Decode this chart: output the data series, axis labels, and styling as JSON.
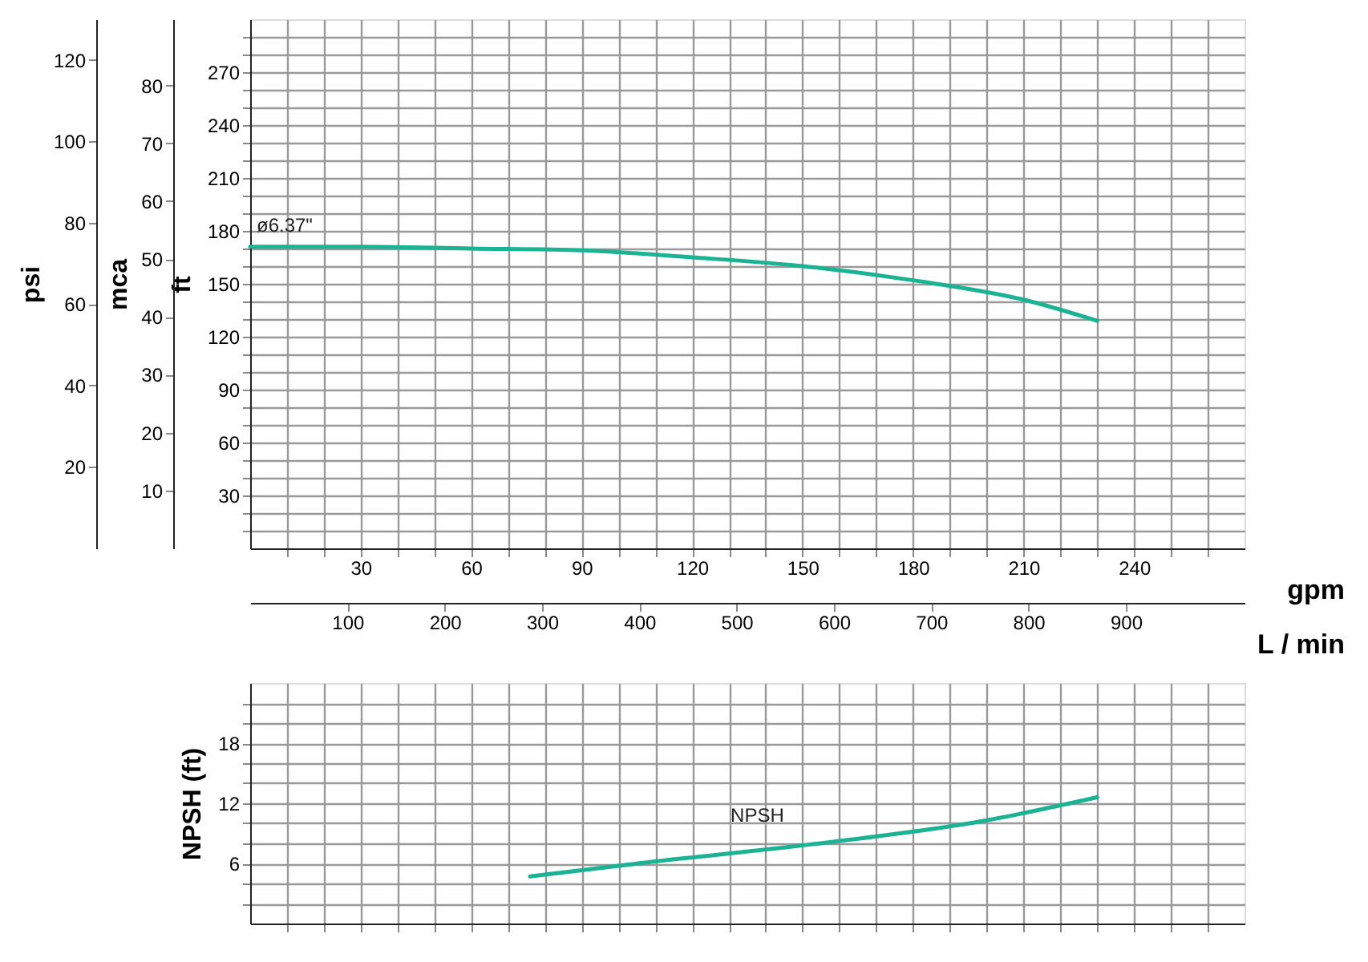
{
  "chart_data": [
    {
      "type": "line",
      "xlabel": "gpm",
      "x2label": "L / min",
      "ylabel": "ft",
      "y2label": "psi",
      "y3label": "mca",
      "grid": true,
      "x": [
        0,
        30,
        60,
        90,
        120,
        150,
        180,
        210,
        230
      ],
      "series": [
        {
          "color": "#1bb394",
          "values": [
            171,
            171,
            170,
            169,
            165,
            160,
            152,
            141,
            129
          ]
        }
      ],
      "annotations": [
        "ø6.37\""
      ],
      "xlim": [
        0,
        270
      ],
      "xticks": [
        {
          "value": 10,
          "label": null
        },
        {
          "value": 20,
          "label": null
        },
        30,
        {
          "value": 40,
          "label": null
        },
        {
          "value": 50,
          "label": null
        },
        60,
        {
          "value": 70,
          "label": null
        },
        {
          "value": 80,
          "label": null
        },
        90,
        {
          "value": 100,
          "label": null
        },
        {
          "value": 110,
          "label": null
        },
        120,
        {
          "value": 130,
          "label": null
        },
        {
          "value": 140,
          "label": null
        },
        150,
        {
          "value": 160,
          "label": null
        },
        {
          "value": 170,
          "label": null
        },
        180,
        {
          "value": 190,
          "label": null
        },
        {
          "value": 200,
          "label": null
        },
        210,
        {
          "value": 220,
          "label": null
        },
        {
          "value": 230,
          "label": null
        },
        240,
        {
          "value": 250,
          "label": null
        },
        {
          "value": 260,
          "label": null
        }
      ],
      "x2lim": [
        0,
        1022
      ],
      "x2ticks": [
        100,
        200,
        300,
        400,
        500,
        600,
        700,
        800,
        900
      ],
      "ylim": [
        0,
        300
      ],
      "yticks": [
        {
          "value": 10,
          "label": null
        },
        {
          "value": 20,
          "label": null
        },
        30,
        {
          "value": 40,
          "label": null
        },
        {
          "value": 50,
          "label": null
        },
        60,
        {
          "value": 70,
          "label": null
        },
        {
          "value": 80,
          "label": null
        },
        90,
        {
          "value": 100,
          "label": null
        },
        {
          "value": 110,
          "label": null
        },
        120,
        {
          "value": 130,
          "label": null
        },
        {
          "value": 140,
          "label": null
        },
        150,
        {
          "value": 160,
          "label": null
        },
        {
          "value": 170,
          "label": null
        },
        180,
        {
          "value": 190,
          "label": null
        },
        {
          "value": 200,
          "label": null
        },
        210,
        {
          "value": 220,
          "label": null
        },
        {
          "value": 230,
          "label": null
        },
        240,
        {
          "value": 250,
          "label": null
        },
        {
          "value": 260,
          "label": null
        },
        270,
        {
          "value": 280,
          "label": null
        },
        {
          "value": 290,
          "label": null
        }
      ],
      "y2lim": [
        0,
        130
      ],
      "y2ticks": [
        20,
        40,
        60,
        80,
        100,
        120
      ],
      "y3lim": [
        0,
        91.44
      ],
      "y3ticks": [
        10,
        20,
        30,
        40,
        50,
        60,
        70,
        80
      ]
    },
    {
      "type": "line",
      "ylabel": "NPSH (ft)",
      "grid": true,
      "tick_labels": "y",
      "x": [
        76,
        110,
        150,
        200,
        230
      ],
      "series": [
        {
          "color": "#1bb394",
          "values": [
            4.7,
            6.2,
            7.8,
            10.3,
            12.6
          ]
        }
      ],
      "annotations": [
        "NPSH"
      ],
      "xlim": [
        0,
        270
      ],
      "xticks": [
        10,
        20,
        30,
        40,
        50,
        60,
        70,
        80,
        90,
        100,
        110,
        120,
        130,
        140,
        150,
        160,
        170,
        180,
        190,
        200,
        210,
        220,
        230,
        240,
        250,
        260
      ],
      "ylim": [
        0,
        24
      ],
      "yticks": [
        {
          "value": 2,
          "label": null
        },
        {
          "value": 4,
          "label": null
        },
        6,
        {
          "value": 8,
          "label": null
        },
        {
          "value": 10,
          "label": null
        },
        12,
        {
          "value": 14,
          "label": null
        },
        {
          "value": 16,
          "label": null
        },
        18,
        {
          "value": 20,
          "label": null
        },
        {
          "value": 22,
          "label": null
        }
      ]
    }
  ]
}
